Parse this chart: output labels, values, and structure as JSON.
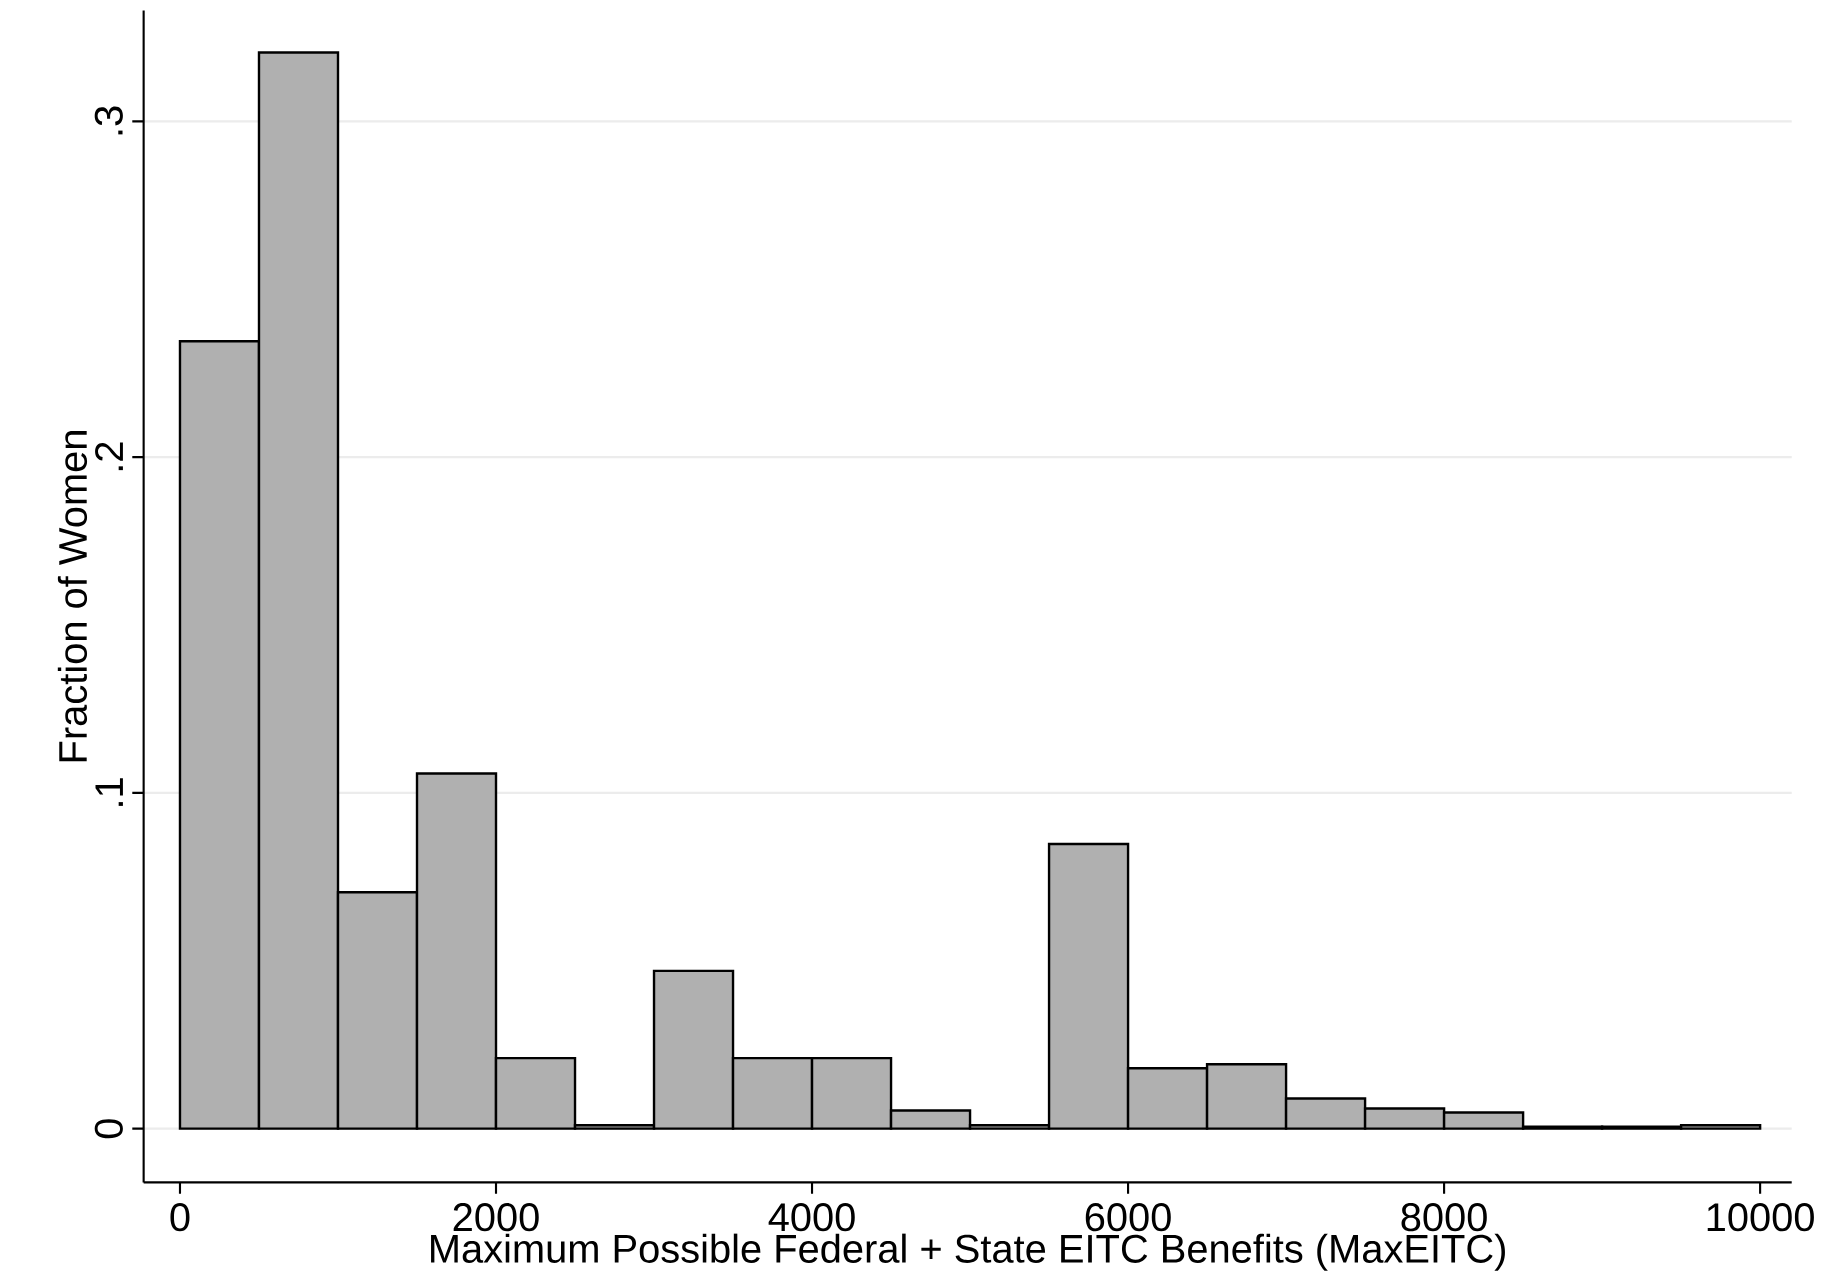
{
  "chart_data": {
    "type": "histogram",
    "xlabel": "Maximum Possible Federal + State EITC Benefits (MaxEITC)",
    "ylabel": "Fraction of Women",
    "bins": [
      0,
      500,
      1000,
      1500,
      2000,
      2500,
      3000,
      3500,
      4000,
      4500,
      5000,
      5500,
      6000,
      6500,
      7000,
      7500,
      8000,
      8500,
      9000,
      9500,
      10000
    ],
    "values": [
      0.2345,
      0.3205,
      0.0704,
      0.1058,
      0.021,
      0.001,
      0.047,
      0.021,
      0.021,
      0.0054,
      0.001,
      0.0848,
      0.018,
      0.0192,
      0.009,
      0.006,
      0.0048,
      0.0006,
      0.0006,
      0.001
    ],
    "color": "#b0b0b0",
    "xlim": [
      -230,
      10200
    ],
    "ylim": [
      -0.016,
      0.333
    ],
    "xticks": [
      0,
      2000,
      4000,
      6000,
      8000,
      10000
    ],
    "yticks": [
      {
        "value": 0,
        "label": "0"
      },
      {
        "value": 0.1,
        "label": ".1"
      },
      {
        "value": 0.2,
        "label": ".2"
      },
      {
        "value": 0.3,
        "label": ".3"
      }
    ],
    "grid": "y"
  }
}
